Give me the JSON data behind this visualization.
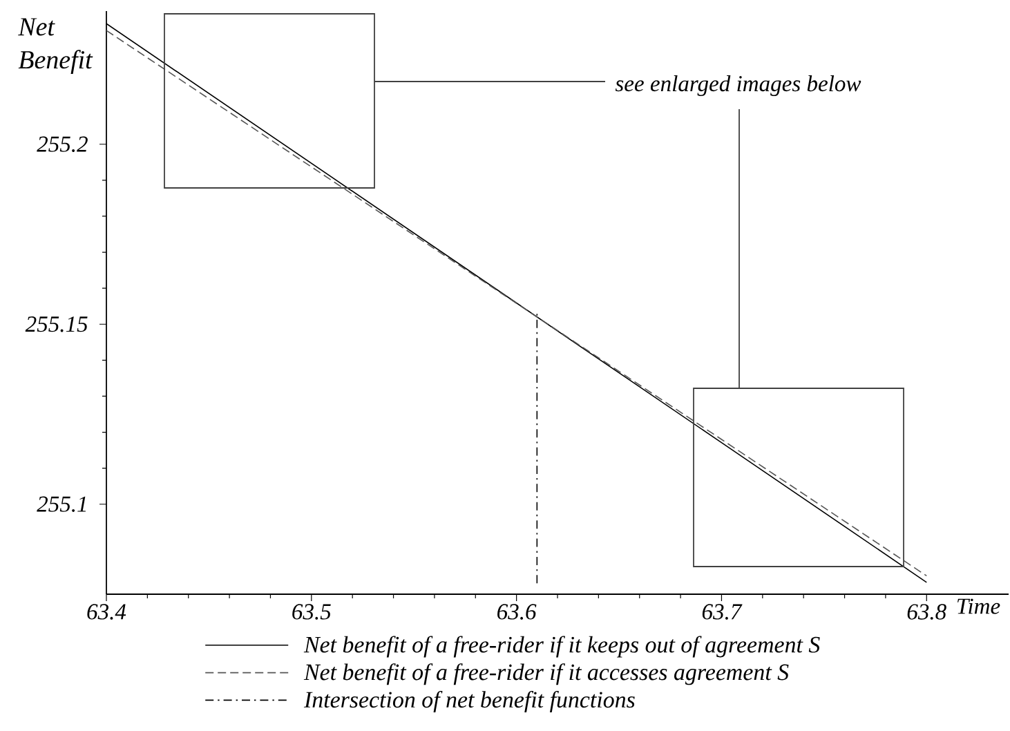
{
  "chart_data": {
    "type": "line",
    "xlabel": "Time",
    "ylabel": "Net Benefit",
    "annotations": [
      "see enlarged images below"
    ],
    "series": [
      {
        "name": "Net benefit of a free-rider if it keeps out of agreement S",
        "color": "#000000",
        "line_style": "solid",
        "x": [
          63.4,
          63.5,
          63.6,
          63.7,
          63.8
        ],
        "values": [
          255.2335,
          255.1947,
          255.1559,
          255.1171,
          255.0783
        ]
      },
      {
        "name": "Net benefit of a free-rider if it accesses agreement S",
        "color": "#555555",
        "line_style": "dashed",
        "x": [
          63.4,
          63.5,
          63.6,
          63.7,
          63.8
        ],
        "values": [
          255.2316,
          255.1937,
          255.1558,
          255.118,
          255.0801
        ]
      },
      {
        "name": "Intersection of net benefit functions",
        "color": "#000000",
        "line_style": "dashdot",
        "x": [
          63.61,
          63.61
        ],
        "values": [
          255.078,
          255.153
        ]
      }
    ],
    "xlim": [
      63.4,
      63.84
    ],
    "ylim": [
      255.075,
      255.237
    ],
    "xticks": [
      63.4,
      63.5,
      63.6,
      63.7,
      63.8
    ],
    "yticks": [
      255.1,
      255.15,
      255.2
    ],
    "legend": "bottom",
    "marker": "none"
  }
}
